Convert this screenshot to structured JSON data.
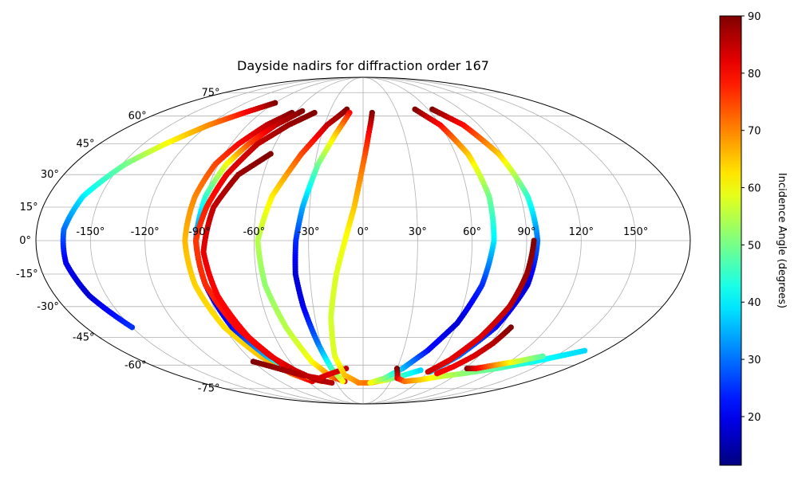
{
  "chart_data": {
    "type": "scatter",
    "projection": "mollweide",
    "title": "Dayside nadirs for diffraction order 167",
    "grid": true,
    "x_tick_labels": [
      "-150°",
      "-120°",
      "-90°",
      "-60°",
      "-30°",
      "0°",
      "30°",
      "60°",
      "90°",
      "120°",
      "150°"
    ],
    "x_ticks": [
      -150,
      -120,
      -90,
      -60,
      -30,
      0,
      30,
      60,
      90,
      120,
      150
    ],
    "y_tick_labels": [
      "-75°",
      "-60°",
      "-45°",
      "-30°",
      "-15°",
      "0°",
      "15°",
      "30°",
      "45°",
      "60°",
      "75°"
    ],
    "y_ticks": [
      -75,
      -60,
      -45,
      -30,
      -15,
      0,
      15,
      30,
      45,
      60,
      75
    ],
    "colorbar": {
      "label": "Incidence Angle (degrees)",
      "colormap": "jet",
      "range": [
        11.5,
        90
      ],
      "tick_labels": [
        "20",
        "30",
        "40",
        "50",
        "60",
        "70",
        "80",
        "90"
      ],
      "ticks": [
        20,
        30,
        40,
        50,
        60,
        70,
        80,
        90
      ]
    },
    "series": [
      {
        "points": [
          [
            -90,
            68,
            90
          ],
          [
            -105,
            62,
            80
          ],
          [
            -120,
            55,
            70
          ],
          [
            -135,
            45,
            60
          ],
          [
            -148,
            35,
            50
          ],
          [
            -160,
            20,
            40
          ],
          [
            -165,
            5,
            30
          ],
          [
            -165,
            -10,
            20
          ],
          [
            -160,
            -25,
            18
          ],
          [
            -150,
            -40,
            25
          ]
        ]
      },
      {
        "points": [
          [
            -63,
            62,
            90
          ],
          [
            -75,
            55,
            85
          ],
          [
            -85,
            45,
            80
          ],
          [
            -92,
            35,
            75
          ],
          [
            -96,
            20,
            70
          ],
          [
            -98,
            0,
            66
          ],
          [
            -96,
            -20,
            64
          ],
          [
            -90,
            -40,
            63
          ],
          [
            -80,
            -55,
            65
          ],
          [
            -68,
            -65,
            72
          ],
          [
            -55,
            -70,
            82
          ]
        ]
      },
      {
        "points": [
          [
            -55,
            63,
            90
          ],
          [
            -68,
            55,
            85
          ],
          [
            -78,
            45,
            75
          ],
          [
            -85,
            35,
            60
          ],
          [
            -90,
            20,
            45
          ],
          [
            -92,
            0,
            30
          ],
          [
            -90,
            -20,
            20
          ],
          [
            -85,
            -40,
            22
          ],
          [
            -75,
            -55,
            35
          ],
          [
            -62,
            -65,
            55
          ],
          [
            -45,
            -70,
            70
          ]
        ]
      },
      {
        "points": [
          [
            -43,
            62,
            90
          ],
          [
            -58,
            55,
            88
          ],
          [
            -72,
            45,
            85
          ],
          [
            -82,
            30,
            82
          ],
          [
            -88,
            15,
            78
          ],
          [
            -92,
            0,
            76
          ],
          [
            -90,
            -20,
            77
          ],
          [
            -82,
            -40,
            80
          ],
          [
            -72,
            -55,
            82
          ],
          [
            -62,
            -63,
            84
          ],
          [
            -50,
            -69,
            86
          ],
          [
            -35,
            -71,
            86
          ]
        ]
      },
      {
        "points": [
          [
            -60,
            40,
            90
          ],
          [
            -75,
            30,
            88
          ],
          [
            -84,
            15,
            85
          ],
          [
            -88,
            -5,
            82
          ],
          [
            -85,
            -25,
            80
          ],
          [
            -78,
            -45,
            80
          ],
          [
            -68,
            -60,
            82
          ]
        ]
      },
      {
        "points": [
          [
            -15,
            64,
            90
          ],
          [
            -28,
            55,
            85
          ],
          [
            -40,
            40,
            75
          ],
          [
            -52,
            20,
            62
          ],
          [
            -58,
            0,
            55
          ],
          [
            -56,
            -20,
            52
          ],
          [
            -50,
            -40,
            55
          ],
          [
            -42,
            -58,
            60
          ],
          [
            -32,
            -67,
            70
          ],
          [
            -20,
            -70,
            80
          ]
        ]
      },
      {
        "points": [
          [
            -12,
            62,
            80
          ],
          [
            -20,
            50,
            65
          ],
          [
            -28,
            35,
            50
          ],
          [
            -34,
            15,
            35
          ],
          [
            -37,
            0,
            25
          ],
          [
            -38,
            -15,
            18
          ],
          [
            -36,
            -30,
            20
          ],
          [
            -32,
            -48,
            30
          ],
          [
            -28,
            -62,
            45
          ],
          [
            -22,
            -70,
            60
          ]
        ]
      },
      {
        "points": [
          [
            -90,
            -58,
            90
          ],
          [
            -75,
            -62,
            88
          ],
          [
            -60,
            -66,
            86
          ],
          [
            -45,
            -68,
            84
          ],
          [
            -30,
            -65,
            82
          ],
          [
            -15,
            -62,
            85
          ]
        ]
      },
      {
        "points": [
          [
            8,
            62,
            90
          ],
          [
            4,
            50,
            80
          ],
          [
            0,
            35,
            72
          ],
          [
            -5,
            15,
            65
          ],
          [
            -10,
            0,
            60
          ],
          [
            -15,
            -15,
            58
          ],
          [
            -20,
            -35,
            57
          ],
          [
            -22,
            -55,
            58
          ],
          [
            -18,
            -66,
            65
          ],
          [
            -5,
            -71,
            70
          ],
          [
            8,
            -71,
            72
          ],
          [
            25,
            -69,
            55
          ],
          [
            40,
            -66,
            45
          ],
          [
            52,
            -63,
            38
          ]
        ]
      },
      {
        "points": [
          [
            48,
            64,
            90
          ],
          [
            60,
            55,
            80
          ],
          [
            68,
            40,
            65
          ],
          [
            72,
            20,
            50
          ],
          [
            72,
            0,
            40
          ],
          [
            68,
            -20,
            25
          ],
          [
            60,
            -38,
            18
          ],
          [
            48,
            -52,
            22
          ],
          [
            35,
            -62,
            35
          ],
          [
            22,
            -68,
            50
          ],
          [
            8,
            -71,
            60
          ]
        ]
      },
      {
        "points": [
          [
            30,
            -62,
            90
          ],
          [
            35,
            -68,
            82
          ],
          [
            45,
            -70,
            72
          ],
          [
            60,
            -69,
            65
          ],
          [
            75,
            -67,
            58
          ],
          [
            95,
            -65,
            52
          ],
          [
            118,
            -62,
            48
          ],
          [
            140,
            -58,
            42
          ],
          [
            165,
            -52,
            38
          ]
        ]
      },
      {
        "points": [
          [
            64,
            64,
            90
          ],
          [
            78,
            55,
            80
          ],
          [
            88,
            40,
            65
          ],
          [
            94,
            20,
            45
          ],
          [
            96,
            0,
            30
          ],
          [
            94,
            -20,
            18
          ],
          [
            86,
            -40,
            22
          ],
          [
            74,
            -55,
            30
          ],
          [
            62,
            -64,
            38
          ]
        ]
      },
      {
        "points": [
          [
            94,
            0,
            90
          ],
          [
            92,
            -15,
            88
          ],
          [
            88,
            -30,
            85
          ],
          [
            80,
            -45,
            83
          ],
          [
            70,
            -57,
            82
          ],
          [
            60,
            -64,
            84
          ]
        ]
      },
      {
        "points": [
          [
            96,
            -40,
            90
          ],
          [
            92,
            -48,
            86
          ],
          [
            86,
            -55,
            83
          ],
          [
            78,
            -61,
            81
          ],
          [
            70,
            -65,
            80
          ]
        ]
      },
      {
        "points": [
          [
            92,
            -62,
            90
          ],
          [
            100,
            -62,
            82
          ],
          [
            112,
            -60,
            70
          ],
          [
            125,
            -58,
            58
          ],
          [
            140,
            -55,
            48
          ]
        ]
      }
    ]
  }
}
